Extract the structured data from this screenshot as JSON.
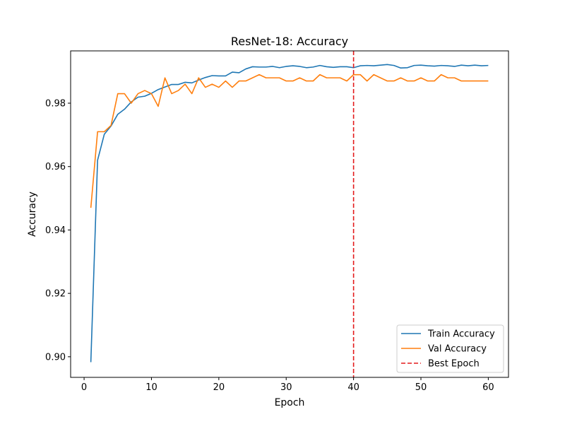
{
  "chart_data": {
    "type": "line",
    "title": "ResNet-18: Accuracy",
    "xlabel": "Epoch",
    "ylabel": "Accuracy",
    "xlim": [
      -2.0,
      63.0
    ],
    "ylim": [
      0.8935,
      0.9965
    ],
    "xticks": [
      0,
      10,
      20,
      30,
      40,
      50,
      60
    ],
    "xtick_labels": [
      "0",
      "10",
      "20",
      "30",
      "40",
      "50",
      "60"
    ],
    "yticks": [
      0.9,
      0.92,
      0.94,
      0.96,
      0.98
    ],
    "ytick_labels": [
      "0.90",
      "0.92",
      "0.94",
      "0.96",
      "0.98"
    ],
    "grid": false,
    "legend_position": "lower-right",
    "x": [
      1,
      2,
      3,
      4,
      5,
      6,
      7,
      8,
      9,
      10,
      11,
      12,
      13,
      14,
      15,
      16,
      17,
      18,
      19,
      20,
      21,
      22,
      23,
      24,
      25,
      26,
      27,
      28,
      29,
      30,
      31,
      32,
      33,
      34,
      35,
      36,
      37,
      38,
      39,
      40,
      41,
      42,
      43,
      44,
      45,
      46,
      47,
      48,
      49,
      50,
      51,
      52,
      53,
      54,
      55,
      56,
      57,
      58,
      59,
      60
    ],
    "series": [
      {
        "name": "Train Accuracy",
        "color": "#1f77b4",
        "style": "solid",
        "values": [
          0.8983,
          0.962,
          0.9702,
          0.9728,
          0.9765,
          0.9781,
          0.9804,
          0.9819,
          0.9822,
          0.9831,
          0.9843,
          0.9851,
          0.9859,
          0.9859,
          0.9866,
          0.9864,
          0.9873,
          0.9881,
          0.9887,
          0.9886,
          0.9886,
          0.9898,
          0.9896,
          0.9908,
          0.9915,
          0.9914,
          0.9914,
          0.9916,
          0.9912,
          0.9916,
          0.9918,
          0.9916,
          0.9912,
          0.9914,
          0.9919,
          0.9915,
          0.9913,
          0.9915,
          0.9915,
          0.9912,
          0.9918,
          0.9919,
          0.9918,
          0.992,
          0.9922,
          0.9919,
          0.9911,
          0.9912,
          0.9919,
          0.992,
          0.9918,
          0.9917,
          0.9919,
          0.9918,
          0.9916,
          0.992,
          0.9918,
          0.992,
          0.9918,
          0.9919
        ]
      },
      {
        "name": "Val Accuracy",
        "color": "#ff7f0e",
        "style": "solid",
        "values": [
          0.947,
          0.971,
          0.971,
          0.973,
          0.983,
          0.983,
          0.98,
          0.983,
          0.984,
          0.983,
          0.979,
          0.988,
          0.983,
          0.984,
          0.986,
          0.983,
          0.988,
          0.985,
          0.986,
          0.985,
          0.987,
          0.985,
          0.987,
          0.987,
          0.988,
          0.989,
          0.988,
          0.988,
          0.988,
          0.987,
          0.987,
          0.988,
          0.987,
          0.987,
          0.989,
          0.988,
          0.988,
          0.988,
          0.987,
          0.989,
          0.989,
          0.987,
          0.989,
          0.988,
          0.987,
          0.987,
          0.988,
          0.987,
          0.987,
          0.988,
          0.987,
          0.987,
          0.989,
          0.988,
          0.988,
          0.987,
          0.987,
          0.987,
          0.987,
          0.987
        ]
      }
    ],
    "vline": {
      "name": "Best Epoch",
      "x": 40,
      "color": "#e31a1c",
      "style": "dashed"
    }
  }
}
